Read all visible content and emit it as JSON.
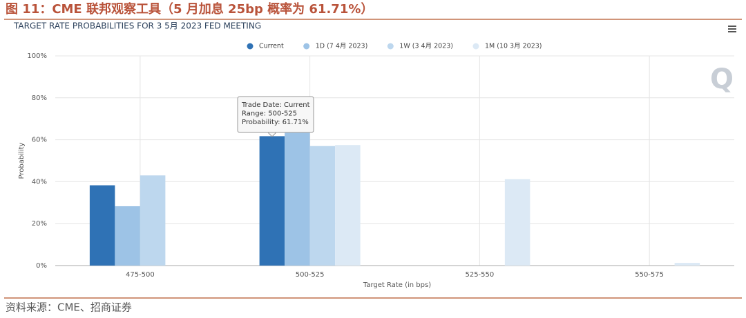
{
  "chart_data": {
    "type": "bar",
    "title": "图 11：CME 联邦观察工具（5 月加息 25bp 概率为 61.71%）",
    "subtitle": "TARGET RATE PROBABILITIES FOR 3 5月 2023 FED MEETING",
    "x_label": "Target Rate (in bps)",
    "y_label": "Probability",
    "categories": [
      "475-500",
      "500-525",
      "525-550",
      "550-575"
    ],
    "series": [
      {
        "name": "Current",
        "color": "#2f72b5",
        "values": [
          38.29,
          61.71,
          0,
          0
        ]
      },
      {
        "name": "1D (7 4月 2023)",
        "color": "#9dc3e6",
        "values": [
          28.3,
          71.7,
          0,
          0
        ]
      },
      {
        "name": "1W (3 4月 2023)",
        "color": "#bdd7ee",
        "values": [
          43,
          57,
          0,
          0
        ]
      },
      {
        "name": "1M (10 3月 2023)",
        "color": "#dce9f5",
        "values": [
          0,
          57.5,
          41.2,
          1.3
        ]
      }
    ],
    "ylim": [
      0,
      100
    ],
    "yticks": [
      {
        "value": 0,
        "label": "0%"
      },
      {
        "value": 20,
        "label": "20%"
      },
      {
        "value": 40,
        "label": "40%"
      },
      {
        "value": 60,
        "label": "60%"
      },
      {
        "value": 80,
        "label": "80%"
      },
      {
        "value": 100,
        "label": "100%"
      }
    ],
    "grid": true,
    "tooltip": [
      "Trade Date: Current",
      "Range: 500-525",
      "Probability: 61.71%"
    ],
    "watermark": "Q",
    "source": "资料来源：CME、招商证券"
  }
}
